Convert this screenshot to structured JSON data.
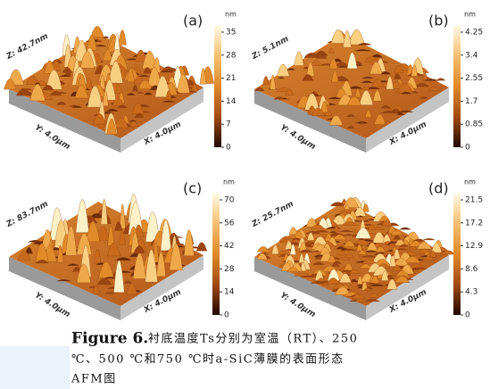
{
  "panels": [
    {
      "label": "(a)",
      "z_label": "Z: 42.7nm",
      "y_label": "Y: 4.0μm",
      "x_label": "X: 4.0μm",
      "unit": "nm",
      "ticks": [
        "35",
        "28",
        "21",
        "14",
        "7",
        "0"
      ]
    },
    {
      "label": "(b)",
      "z_label": "Z: 5.1nm",
      "y_label": "Y: 4.0μm",
      "x_label": "X: 4.0μm",
      "unit": "nm",
      "ticks": [
        "4.25",
        "3.4",
        "2.55",
        "1.7",
        "0.85",
        "0"
      ]
    },
    {
      "label": "(c)",
      "z_label": "Z: 83.7nm",
      "y_label": "Y: 4.0μm",
      "x_label": "X: 4.0μm",
      "unit": "nm",
      "ticks": [
        "70",
        "56",
        "42",
        "28",
        "14",
        "0"
      ]
    },
    {
      "label": "(d)",
      "z_label": "Z: 25.7nm",
      "y_label": "Y: 4.0μm",
      "x_label": "X: 4.0μm",
      "unit": "nm",
      "ticks": [
        "21.5",
        "17.2",
        "12.9",
        "8.6",
        "4.3",
        "0"
      ]
    }
  ],
  "caption": {
    "label": "Figure 6.",
    "lines": [
      "衬底温度Ts分别为室温（RT）、250",
      "℃、500 ℃和750 ℃时a-SiC薄膜的表面形态",
      "AFM图"
    ]
  }
}
